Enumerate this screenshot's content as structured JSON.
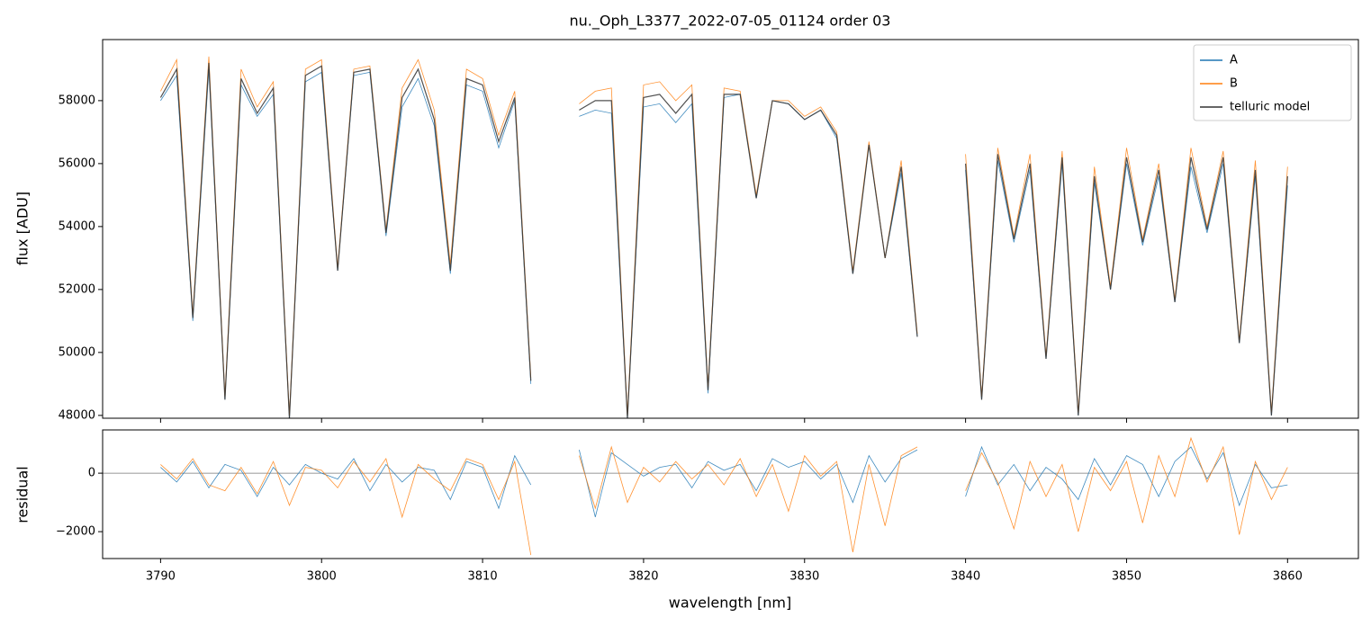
{
  "chart_data": [
    {
      "type": "line",
      "title": "nu._Oph_L3377_2022-07-05_01124  order 03",
      "ylabel": "flux [ADU]",
      "x": [
        3790,
        3791,
        3792,
        3793,
        3794,
        3795,
        3796,
        3797,
        3798,
        3799,
        3800,
        3801,
        3802,
        3803,
        3804,
        3805,
        3806,
        3807,
        3808,
        3809,
        3810,
        3811,
        3812,
        3813,
        3814,
        3815,
        3816,
        3817,
        3818,
        3819,
        3820,
        3821,
        3822,
        3823,
        3824,
        3825,
        3826,
        3827,
        3828,
        3829,
        3830,
        3831,
        3832,
        3833,
        3834,
        3835,
        3836,
        3837,
        3838,
        3839,
        3840,
        3841,
        3842,
        3843,
        3844,
        3845,
        3846,
        3847,
        3848,
        3849,
        3850,
        3851,
        3852,
        3853,
        3854,
        3855,
        3856,
        3857,
        3858,
        3859,
        3860
      ],
      "xlim": [
        3786.4,
        3864.4
      ],
      "ylim": [
        47910,
        59940
      ],
      "yticks": [
        48000,
        50000,
        52000,
        54000,
        56000,
        58000
      ],
      "legend": "upper right",
      "series": [
        {
          "name": "A",
          "color": "#1f77b4",
          "values": [
            58000,
            58800,
            51000,
            59000,
            48500,
            58500,
            57500,
            58200,
            47900,
            58600,
            58900,
            52600,
            58800,
            58900,
            53700,
            57800,
            58700,
            57200,
            52500,
            58500,
            58300,
            56500,
            58000,
            49000,
            null,
            null,
            57500,
            57700,
            57600,
            47900,
            57800,
            57900,
            57300,
            57900,
            48700,
            58100,
            58200,
            54900,
            58000,
            57900,
            57400,
            57700,
            56800,
            52500,
            56600,
            53000,
            55700,
            50500,
            null,
            null,
            55800,
            48500,
            56100,
            53500,
            55800,
            49800,
            56000,
            48000,
            55400,
            52000,
            56000,
            53400,
            55600,
            51600,
            55900,
            53800,
            56000,
            50300,
            55600,
            48000,
            55300
          ]
        },
        {
          "name": "B",
          "color": "#ff7f0e",
          "values": [
            58300,
            59300,
            51200,
            59400,
            48600,
            59000,
            57800,
            58600,
            48000,
            59000,
            59300,
            52700,
            59000,
            59100,
            53900,
            58400,
            59300,
            57700,
            52800,
            59000,
            58700,
            56900,
            58300,
            49200,
            null,
            null,
            57900,
            58300,
            58400,
            48000,
            58500,
            58600,
            58000,
            58500,
            48900,
            58400,
            58300,
            55000,
            58000,
            58000,
            57500,
            57800,
            57000,
            52600,
            56700,
            53000,
            56100,
            50600,
            null,
            null,
            56300,
            48600,
            56500,
            53700,
            56300,
            49900,
            56400,
            48100,
            55900,
            52100,
            56500,
            53600,
            56000,
            51700,
            56500,
            54000,
            56400,
            50400,
            56100,
            48100,
            55900
          ]
        },
        {
          "name": "telluric model",
          "color": "#333333",
          "values": [
            58100,
            59000,
            51100,
            59200,
            48500,
            58700,
            57600,
            58400,
            47900,
            58800,
            59100,
            52600,
            58900,
            59000,
            53800,
            58100,
            59000,
            57400,
            52600,
            58700,
            58500,
            56700,
            58100,
            49100,
            null,
            null,
            57700,
            58000,
            58000,
            47900,
            58100,
            58200,
            57600,
            58200,
            48800,
            58200,
            58200,
            54900,
            58000,
            57900,
            57400,
            57700,
            56900,
            52500,
            56600,
            53000,
            55900,
            50500,
            null,
            null,
            56000,
            48500,
            56300,
            53600,
            56000,
            49800,
            56200,
            48000,
            55600,
            52000,
            56200,
            53500,
            55800,
            51600,
            56200,
            53900,
            56200,
            50300,
            55800,
            48000,
            55600
          ]
        }
      ]
    },
    {
      "type": "line",
      "ylabel": "residual",
      "xlabel": "wavelength [nm]",
      "x": [
        3790,
        3791,
        3792,
        3793,
        3794,
        3795,
        3796,
        3797,
        3798,
        3799,
        3800,
        3801,
        3802,
        3803,
        3804,
        3805,
        3806,
        3807,
        3808,
        3809,
        3810,
        3811,
        3812,
        3813,
        3814,
        3815,
        3816,
        3817,
        3818,
        3819,
        3820,
        3821,
        3822,
        3823,
        3824,
        3825,
        3826,
        3827,
        3828,
        3829,
        3830,
        3831,
        3832,
        3833,
        3834,
        3835,
        3836,
        3837,
        3838,
        3839,
        3840,
        3841,
        3842,
        3843,
        3844,
        3845,
        3846,
        3847,
        3848,
        3849,
        3850,
        3851,
        3852,
        3853,
        3854,
        3855,
        3856,
        3857,
        3858,
        3859,
        3860
      ],
      "xlim": [
        3786.4,
        3864.4
      ],
      "xticks": [
        3790,
        3800,
        3810,
        3820,
        3830,
        3840,
        3850,
        3860
      ],
      "ylim": [
        -2920,
        1480
      ],
      "yticks": [
        {
          "value": -2000,
          "label": "−2000"
        },
        0
      ],
      "reference_line": 0,
      "series": [
        {
          "color": "#1f77b4",
          "values": [
            200,
            -300,
            400,
            -500,
            300,
            100,
            -800,
            200,
            -400,
            300,
            0,
            -200,
            500,
            -600,
            300,
            -300,
            200,
            100,
            -900,
            400,
            200,
            -1200,
            600,
            -400,
            null,
            null,
            800,
            -1500,
            700,
            300,
            -100,
            200,
            300,
            -500,
            400,
            100,
            300,
            -600,
            500,
            200,
            400,
            -200,
            300,
            -1000,
            600,
            -300,
            500,
            800,
            null,
            null,
            -800,
            900,
            -400,
            300,
            -600,
            200,
            -200,
            -900,
            500,
            -400,
            600,
            300,
            -800,
            400,
            900,
            -200,
            700,
            -1100,
            300,
            -500,
            -400
          ]
        },
        {
          "color": "#ff7f0e",
          "values": [
            300,
            -200,
            500,
            -400,
            -600,
            200,
            -700,
            400,
            -1100,
            200,
            100,
            -500,
            400,
            -300,
            500,
            -1500,
            300,
            -200,
            -600,
            500,
            300,
            -900,
            400,
            -2800,
            null,
            null,
            600,
            -1200,
            900,
            -1000,
            200,
            -300,
            400,
            -200,
            300,
            -400,
            500,
            -800,
            300,
            -1300,
            600,
            -100,
            400,
            -2700,
            300,
            -1800,
            600,
            900,
            null,
            null,
            -600,
            700,
            -300,
            -1900,
            400,
            -800,
            300,
            -2000,
            200,
            -600,
            400,
            -1700,
            600,
            -800,
            1200,
            -300,
            900,
            -2100,
            400,
            -900,
            200
          ]
        }
      ]
    }
  ]
}
